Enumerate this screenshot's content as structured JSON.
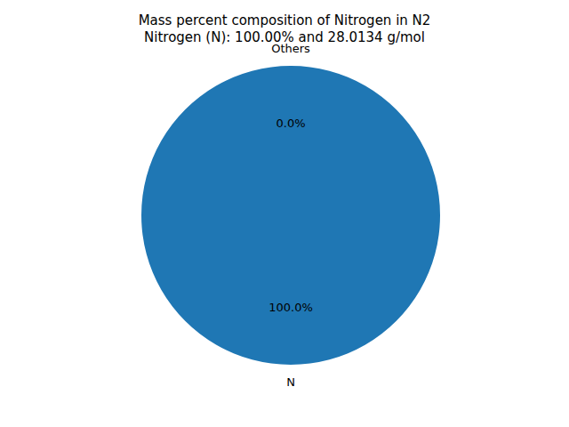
{
  "chart_data": {
    "type": "pie",
    "title": "Mass percent composition of Nitrogen in N2\nNitrogen (N): 100.00% and 28.0134 g/mol",
    "categories": [
      "N",
      "Others"
    ],
    "values": [
      100,
      0
    ],
    "value_labels": [
      "100.0%",
      "0.0%"
    ],
    "colors": [
      "#1f77b4",
      "#ff7f0e"
    ],
    "data_labels": true
  }
}
